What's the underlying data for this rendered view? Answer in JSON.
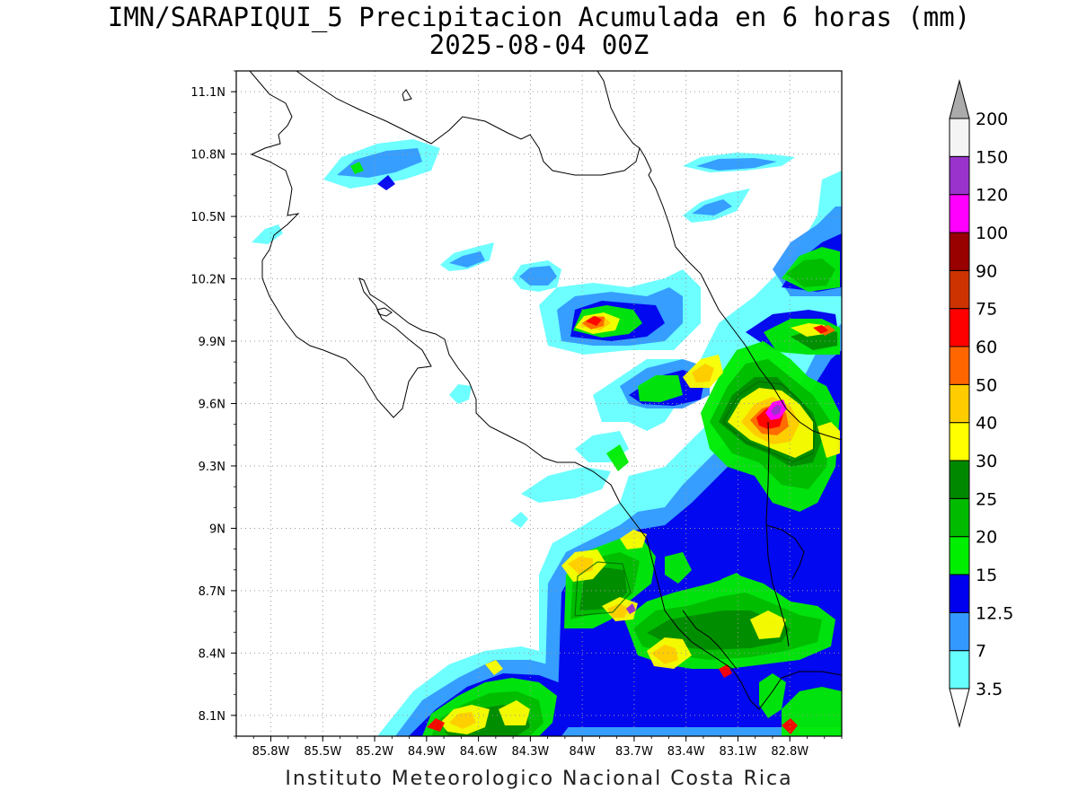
{
  "title": {
    "line1": "IMN/SARAPIQUI_5 Precipitacion Acumulada en 6 horas (mm)",
    "line2": "2025-08-04 00Z"
  },
  "footer": "Instituto Meteorologico Nacional Costa Rica",
  "map": {
    "lon_range": [
      -86.0,
      -82.5
    ],
    "lat_range": [
      8.0,
      11.2
    ],
    "x_ticks": [
      {
        "value": -85.8,
        "label": "85.8W"
      },
      {
        "value": -85.5,
        "label": "85.5W"
      },
      {
        "value": -85.2,
        "label": "85.2W"
      },
      {
        "value": -84.9,
        "label": "84.9W"
      },
      {
        "value": -84.6,
        "label": "84.6W"
      },
      {
        "value": -84.3,
        "label": "84.3W"
      },
      {
        "value": -84.0,
        "label": "84W"
      },
      {
        "value": -83.7,
        "label": "83.7W"
      },
      {
        "value": -83.4,
        "label": "83.4W"
      },
      {
        "value": -83.1,
        "label": "83.1W"
      },
      {
        "value": -82.8,
        "label": "82.8W"
      }
    ],
    "y_ticks": [
      {
        "value": 8.1,
        "label": "8.1N"
      },
      {
        "value": 8.4,
        "label": "8.4N"
      },
      {
        "value": 8.7,
        "label": "8.7N"
      },
      {
        "value": 9.0,
        "label": "9N"
      },
      {
        "value": 9.3,
        "label": "9.3N"
      },
      {
        "value": 9.6,
        "label": "9.6N"
      },
      {
        "value": 9.9,
        "label": "9.9N"
      },
      {
        "value": 10.2,
        "label": "10.2N"
      },
      {
        "value": 10.5,
        "label": "10.5N"
      },
      {
        "value": 10.8,
        "label": "10.8N"
      },
      {
        "value": 11.1,
        "label": "11.1N"
      }
    ],
    "grid": true
  },
  "colorbar": {
    "labels": [
      "3.5",
      "7",
      "12.5",
      "15",
      "20",
      "25",
      "30",
      "40",
      "50",
      "60",
      "75",
      "90",
      "100",
      "120",
      "150",
      "200"
    ],
    "colors": [
      "#ffffff",
      "#66ffff",
      "#3399ff",
      "#0000ee",
      "#00ee00",
      "#00bb00",
      "#008800",
      "#ffff00",
      "#ffcc00",
      "#ff6600",
      "#ff0000",
      "#cc3300",
      "#990000",
      "#ff00ff",
      "#9933cc",
      "#f4f4f4",
      "#aaaaaa"
    ]
  }
}
